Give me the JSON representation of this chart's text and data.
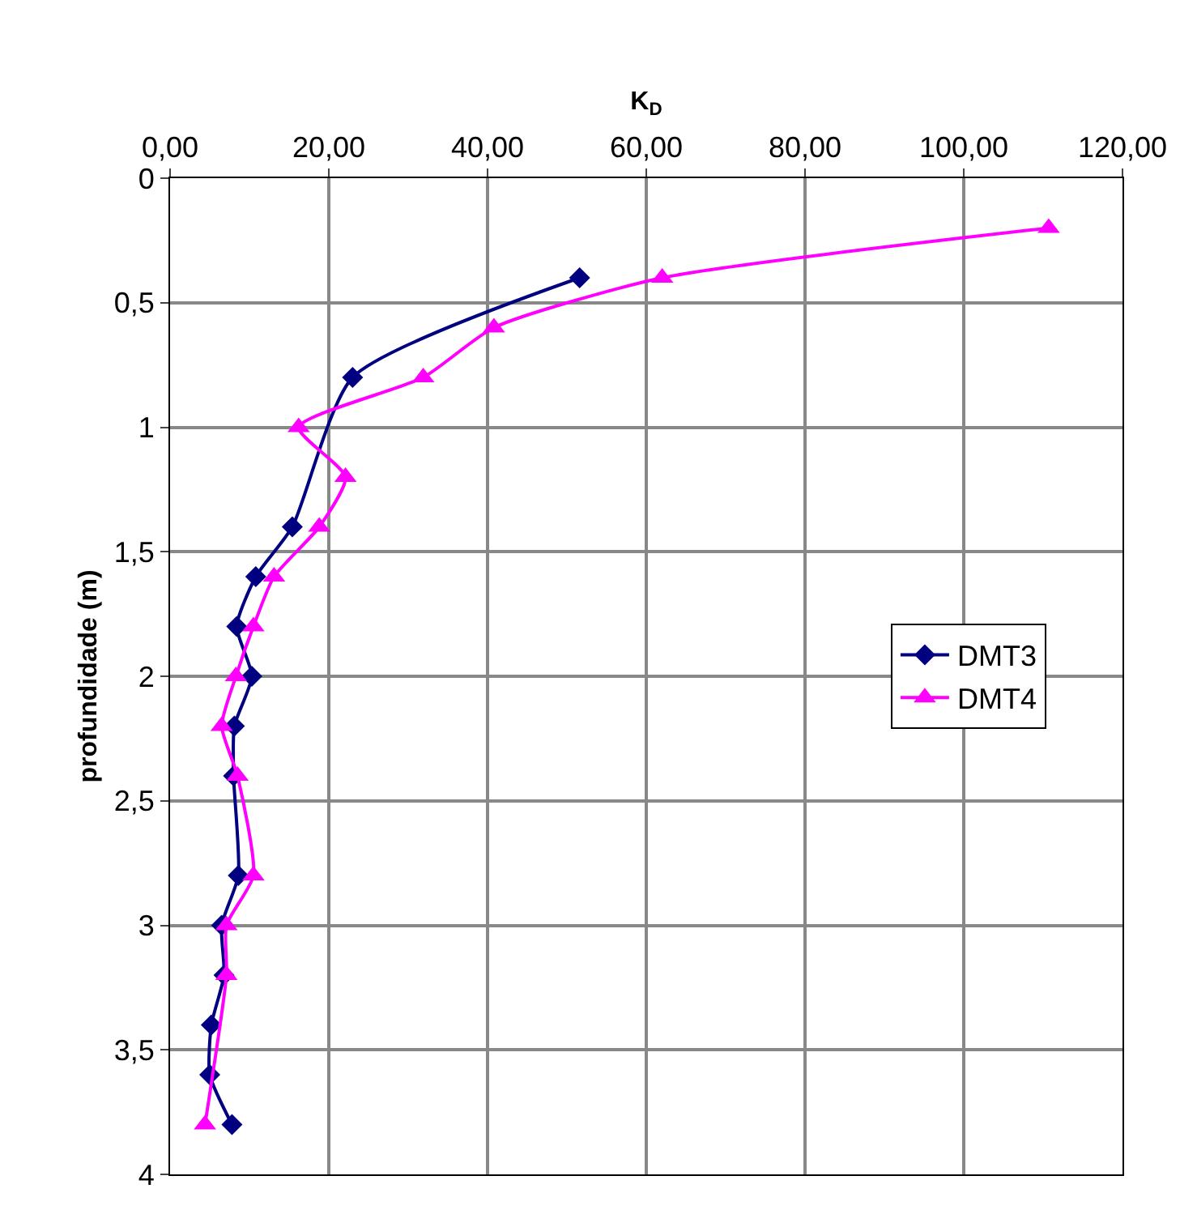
{
  "chart_data": {
    "type": "line",
    "xlabel": "K$_{D}$",
    "ylabel": "profundidade (m)",
    "xlim": [
      0,
      120
    ],
    "xticks": [
      {
        "value": 0,
        "label": "0,00"
      },
      {
        "value": 20,
        "label": "20,00"
      },
      {
        "value": 40,
        "label": "40,00"
      },
      {
        "value": 60,
        "label": "60,00"
      },
      {
        "value": 80,
        "label": "80,00"
      },
      {
        "value": 100,
        "label": "100,00"
      },
      {
        "value": 120,
        "label": "120,00"
      }
    ],
    "ylim": [
      4,
      0
    ],
    "yticks": [
      0,
      {
        "value": 0.5,
        "label": "0,5"
      },
      1,
      {
        "value": 1.5,
        "label": "1,5"
      },
      2,
      {
        "value": 2.5,
        "label": "2,5"
      },
      3,
      {
        "value": 3.5,
        "label": "3,5"
      },
      4
    ],
    "grid": true,
    "legend": "right",
    "series": [
      {
        "name": "DMT3",
        "color": "#000080",
        "marker": "diamond",
        "x": [
          51.6,
          23.0,
          15.4,
          10.8,
          8.4,
          10.3,
          8.1,
          8.0,
          8.6,
          6.5,
          6.8,
          5.2,
          5.0,
          7.8
        ],
        "values": [
          0.4,
          0.8,
          1.4,
          1.6,
          1.8,
          2.0,
          2.2,
          2.4,
          2.8,
          3.0,
          3.2,
          3.4,
          3.6,
          3.8
        ]
      },
      {
        "name": "DMT4",
        "color": "#ff00ff",
        "marker": "triangle",
        "x": [
          110.7,
          62.0,
          40.8,
          31.9,
          16.2,
          22.1,
          18.8,
          13.1,
          10.5,
          8.3,
          6.5,
          8.5,
          10.5,
          7.1,
          7.1,
          4.4
        ],
        "values": [
          0.2,
          0.4,
          0.6,
          0.8,
          1.0,
          1.2,
          1.4,
          1.6,
          1.8,
          2.0,
          2.2,
          2.4,
          2.8,
          3.0,
          3.2,
          3.8
        ]
      }
    ]
  }
}
